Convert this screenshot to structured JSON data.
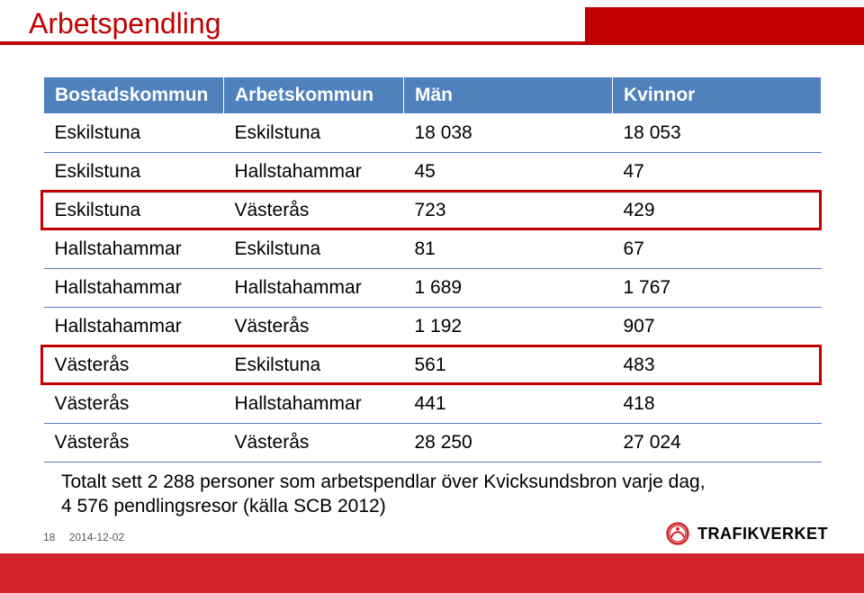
{
  "title": "Arbetspendling",
  "table": {
    "columns": [
      "Bostadskommun",
      "Arbetskommun",
      "Män",
      "Kvinnor"
    ],
    "rows": [
      [
        "Eskilstuna",
        "Eskilstuna",
        "18 038",
        "18 053"
      ],
      [
        "Eskilstuna",
        "Hallstahammar",
        "45",
        "47"
      ],
      [
        "Eskilstuna",
        "Västerås",
        "723",
        "429"
      ],
      [
        "Hallstahammar",
        "Eskilstuna",
        "81",
        "67"
      ],
      [
        "Hallstahammar",
        "Hallstahammar",
        "1 689",
        "1 767"
      ],
      [
        "Hallstahammar",
        "Västerås",
        "1 192",
        "907"
      ],
      [
        "Västerås",
        "Eskilstuna",
        "561",
        "483"
      ],
      [
        "Västerås",
        "Hallstahammar",
        "441",
        "418"
      ],
      [
        "Västerås",
        "Västerås",
        "28 250",
        "27 024"
      ]
    ],
    "highlight_rows": [
      2,
      6
    ],
    "header_bg": "#4f81bd",
    "header_fg": "#ffffff",
    "row_border": "#4f81bd",
    "highlight_border": "#c00000",
    "cell_font_size": 21
  },
  "summary": {
    "line1": "Totalt sett 2 288 personer som arbetspendlar över Kvicksundsbron varje dag,",
    "line2": "4 576 pendlingsresor (källa SCB 2012)"
  },
  "footer": {
    "page_number": "18",
    "date": "2014-12-02",
    "logo_text": "TRAFIKVERKET",
    "bar_color": "#d2232a"
  },
  "colors": {
    "title_color": "#c00000",
    "accent_red": "#c00000"
  }
}
